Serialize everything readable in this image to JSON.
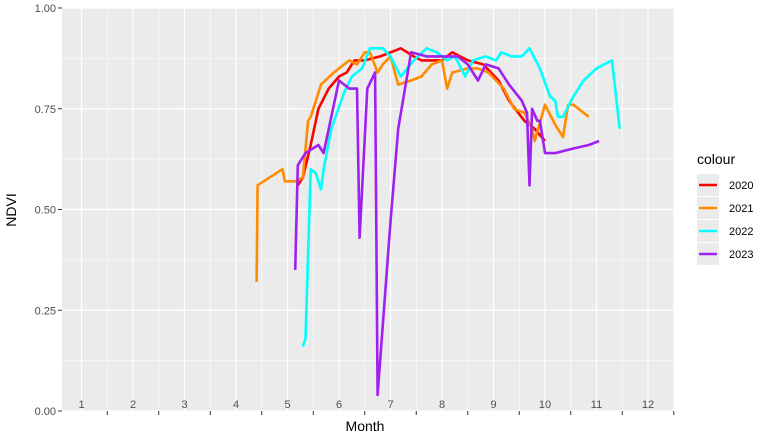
{
  "chart_data": {
    "type": "line",
    "xlabel": "Month",
    "ylabel": "NDVI",
    "xlim": [
      0.5,
      13
    ],
    "ylim": [
      0,
      1
    ],
    "x_tick_labels": [
      "1",
      "2",
      "3",
      "4",
      "5",
      "6",
      "7",
      "8",
      "9",
      "10",
      "11",
      "12"
    ],
    "y_ticks": [
      0.0,
      0.25,
      0.5,
      0.75,
      1.0
    ],
    "y_tick_labels": [
      "0.00",
      "0.25",
      "0.50",
      "0.75",
      "1.00"
    ],
    "grid": true,
    "legend_title": "colour",
    "legend_position": "right",
    "panel_background": "#ebebeb",
    "series": [
      {
        "name": "2020",
        "color": "#ff0000",
        "points": [
          [
            5.2,
            0.56
          ],
          [
            5.3,
            0.58
          ],
          [
            5.45,
            0.66
          ],
          [
            5.6,
            0.75
          ],
          [
            5.8,
            0.8
          ],
          [
            6.0,
            0.83
          ],
          [
            6.15,
            0.84
          ],
          [
            6.3,
            0.87
          ],
          [
            6.5,
            0.87
          ],
          [
            6.8,
            0.88
          ],
          [
            7.2,
            0.9
          ],
          [
            7.45,
            0.88
          ],
          [
            7.6,
            0.87
          ],
          [
            7.8,
            0.87
          ],
          [
            8.0,
            0.87
          ],
          [
            8.2,
            0.89
          ],
          [
            8.5,
            0.87
          ],
          [
            8.8,
            0.86
          ],
          [
            9.1,
            0.82
          ],
          [
            9.3,
            0.77
          ],
          [
            9.6,
            0.72
          ],
          [
            9.8,
            0.7
          ],
          [
            10.0,
            0.67
          ]
        ]
      },
      {
        "name": "2021",
        "color": "#ff8c00",
        "points": [
          [
            4.4,
            0.32
          ],
          [
            4.42,
            0.56
          ],
          [
            4.9,
            0.6
          ],
          [
            4.95,
            0.57
          ],
          [
            5.15,
            0.57
          ],
          [
            5.3,
            0.58
          ],
          [
            5.4,
            0.72
          ],
          [
            5.45,
            0.73
          ],
          [
            5.5,
            0.75
          ],
          [
            5.65,
            0.81
          ],
          [
            5.9,
            0.84
          ],
          [
            6.0,
            0.85
          ],
          [
            6.2,
            0.87
          ],
          [
            6.35,
            0.86
          ],
          [
            6.5,
            0.89
          ],
          [
            6.6,
            0.89
          ],
          [
            6.75,
            0.84
          ],
          [
            6.85,
            0.86
          ],
          [
            7.0,
            0.88
          ],
          [
            7.15,
            0.81
          ],
          [
            7.4,
            0.82
          ],
          [
            7.6,
            0.83
          ],
          [
            7.8,
            0.86
          ],
          [
            8.0,
            0.87
          ],
          [
            8.1,
            0.8
          ],
          [
            8.2,
            0.84
          ],
          [
            8.5,
            0.85
          ],
          [
            8.7,
            0.85
          ],
          [
            8.9,
            0.84
          ],
          [
            9.2,
            0.8
          ],
          [
            9.4,
            0.75
          ],
          [
            9.6,
            0.74
          ],
          [
            9.75,
            0.7
          ],
          [
            9.8,
            0.67
          ],
          [
            10.0,
            0.76
          ],
          [
            10.2,
            0.71
          ],
          [
            10.35,
            0.68
          ],
          [
            10.45,
            0.76
          ],
          [
            10.55,
            0.76
          ],
          [
            10.85,
            0.73
          ]
        ]
      },
      {
        "name": "2022",
        "color": "#00ffff",
        "points": [
          [
            5.3,
            0.16
          ],
          [
            5.35,
            0.18
          ],
          [
            5.45,
            0.6
          ],
          [
            5.55,
            0.59
          ],
          [
            5.65,
            0.55
          ],
          [
            5.7,
            0.6
          ],
          [
            5.85,
            0.7
          ],
          [
            6.1,
            0.79
          ],
          [
            6.25,
            0.83
          ],
          [
            6.45,
            0.85
          ],
          [
            6.6,
            0.9
          ],
          [
            6.7,
            0.9
          ],
          [
            6.85,
            0.9
          ],
          [
            7.0,
            0.88
          ],
          [
            7.2,
            0.83
          ],
          [
            7.45,
            0.87
          ],
          [
            7.7,
            0.9
          ],
          [
            7.9,
            0.89
          ],
          [
            8.1,
            0.87
          ],
          [
            8.25,
            0.88
          ],
          [
            8.45,
            0.83
          ],
          [
            8.6,
            0.87
          ],
          [
            8.85,
            0.88
          ],
          [
            9.05,
            0.87
          ],
          [
            9.15,
            0.89
          ],
          [
            9.35,
            0.88
          ],
          [
            9.55,
            0.88
          ],
          [
            9.7,
            0.9
          ],
          [
            9.9,
            0.85
          ],
          [
            10.1,
            0.78
          ],
          [
            10.2,
            0.77
          ],
          [
            10.25,
            0.73
          ],
          [
            10.35,
            0.73
          ],
          [
            10.55,
            0.78
          ],
          [
            10.75,
            0.82
          ],
          [
            11.0,
            0.85
          ],
          [
            11.3,
            0.87
          ],
          [
            11.45,
            0.7
          ]
        ]
      },
      {
        "name": "2023",
        "color": "#a020f0",
        "points": [
          [
            5.15,
            0.35
          ],
          [
            5.2,
            0.61
          ],
          [
            5.35,
            0.64
          ],
          [
            5.6,
            0.66
          ],
          [
            5.7,
            0.64
          ],
          [
            5.85,
            0.73
          ],
          [
            6.0,
            0.82
          ],
          [
            6.2,
            0.8
          ],
          [
            6.35,
            0.8
          ],
          [
            6.4,
            0.43
          ],
          [
            6.55,
            0.8
          ],
          [
            6.7,
            0.84
          ],
          [
            6.75,
            0.04
          ],
          [
            7.0,
            0.47
          ],
          [
            7.15,
            0.7
          ],
          [
            7.4,
            0.89
          ],
          [
            7.7,
            0.88
          ],
          [
            8.0,
            0.88
          ],
          [
            8.3,
            0.88
          ],
          [
            8.5,
            0.86
          ],
          [
            8.7,
            0.82
          ],
          [
            8.85,
            0.86
          ],
          [
            9.1,
            0.85
          ],
          [
            9.3,
            0.81
          ],
          [
            9.55,
            0.77
          ],
          [
            9.65,
            0.74
          ],
          [
            9.7,
            0.56
          ],
          [
            9.75,
            0.75
          ],
          [
            9.85,
            0.72
          ],
          [
            9.9,
            0.72
          ],
          [
            10.0,
            0.64
          ],
          [
            10.2,
            0.64
          ],
          [
            10.5,
            0.65
          ],
          [
            10.85,
            0.66
          ],
          [
            11.05,
            0.67
          ]
        ]
      }
    ]
  }
}
